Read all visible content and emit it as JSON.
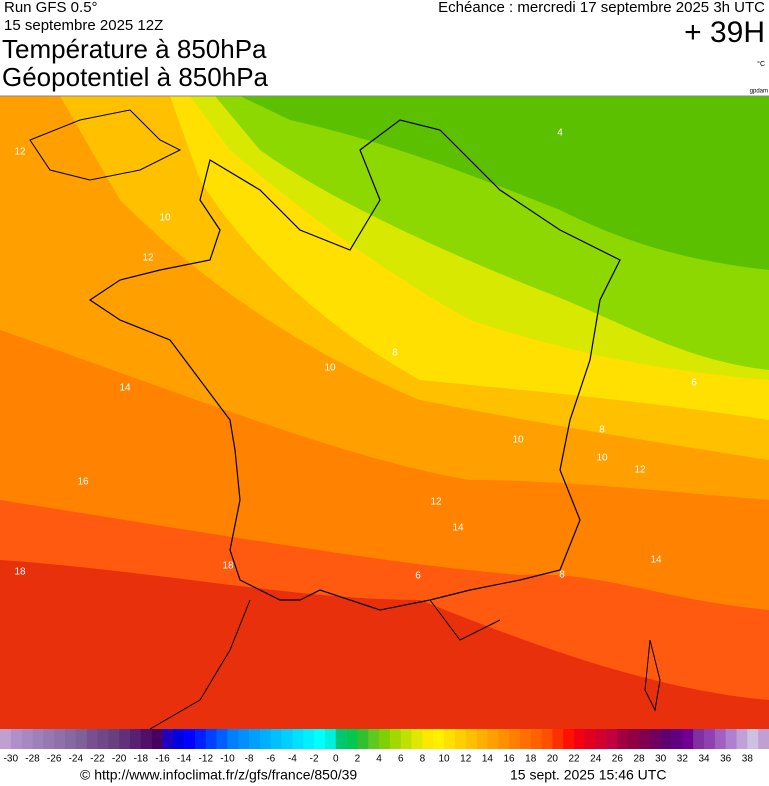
{
  "header": {
    "run": "Run GFS 0.5°",
    "date": "15 septembre 2025 12Z",
    "title_1": "Température à 850hPa",
    "title_2": "Géopotentiel à 850hPa",
    "valid": "Echéance : mercredi 17 septembre 2025 3h UTC",
    "lead": "+ 39H",
    "unit": "°C",
    "unit_2": "gpdam"
  },
  "map": {
    "contour_labels": [
      "12",
      "10",
      "12",
      "14",
      "16",
      "18",
      "18",
      "10",
      "8",
      "4",
      "6",
      "8",
      "10",
      "10",
      "12",
      "12",
      "14",
      "14",
      "8",
      "6"
    ]
  },
  "scale": {
    "ticks": [
      -30,
      -28,
      -26,
      -24,
      -22,
      -20,
      -18,
      -16,
      -14,
      -12,
      -10,
      -8,
      -6,
      -4,
      -2,
      0,
      2,
      4,
      6,
      8,
      10,
      12,
      14,
      16,
      18,
      20,
      22,
      24,
      26,
      28,
      30,
      32,
      34,
      36,
      38
    ],
    "colors": [
      "#c0a0d0",
      "#b090c8",
      "#a888c0",
      "#a080b8",
      "#9878b0",
      "#9070a8",
      "#8868a0",
      "#806098",
      "#785090",
      "#704888",
      "#684080",
      "#603078",
      "#582070",
      "#501068",
      "#480060",
      "#2000c0",
      "#0000e0",
      "#0000ff",
      "#0020ff",
      "#0040ff",
      "#0060ff",
      "#0080ff",
      "#0090ff",
      "#00a0ff",
      "#00b0ff",
      "#00c0ff",
      "#00d0ff",
      "#00e0ff",
      "#00f0ff",
      "#00ffff",
      "#00f0e0",
      "#00c870",
      "#00c850",
      "#30c030",
      "#60c820",
      "#80d000",
      "#a0d800",
      "#c0e000",
      "#e0e800",
      "#ffe800",
      "#fff000",
      "#ffe000",
      "#ffd000",
      "#ffc000",
      "#ffb000",
      "#ffa000",
      "#ff9000",
      "#ff8000",
      "#ff7000",
      "#ff6000",
      "#ff5000",
      "#ff3000",
      "#ff1000",
      "#f00010",
      "#e00020",
      "#d00030",
      "#c00040",
      "#a00040",
      "#900040",
      "#800050",
      "#700060",
      "#600070",
      "#600080",
      "#700090",
      "#8030a0",
      "#9040b0",
      "#a060c0",
      "#b080d0",
      "#c0a0d8",
      "#d0c0e0",
      "#c0a0d0"
    ]
  },
  "footer": {
    "url": "© http://www.infoclimat.fr/z/gfs/france/850/39",
    "stamp": "15 sept. 2025 15:46 UTC"
  }
}
